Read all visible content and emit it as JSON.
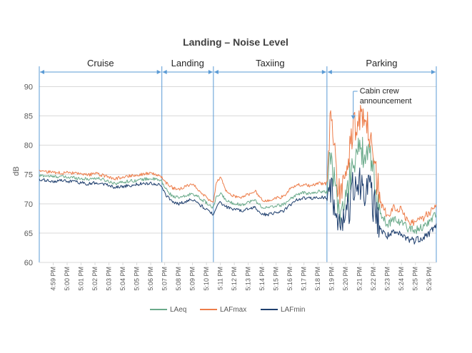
{
  "chart_data": {
    "type": "line",
    "title": "Landing – Noise Level",
    "xlabel": "",
    "ylabel": "dB",
    "ylim": [
      60,
      92
    ],
    "yticks": [
      60,
      65,
      70,
      75,
      80,
      85,
      90
    ],
    "grid": true,
    "legend_position": "bottom",
    "x_range_minutes": [
      -1,
      27.5
    ],
    "x_ticks": [
      "4:59 PM",
      "5:00 PM",
      "5:01 PM",
      "5:02 PM",
      "5:03 PM",
      "5:04 PM",
      "5:05 PM",
      "5:06 PM",
      "5:07 PM",
      "5:08 PM",
      "5:09 PM",
      "5:10 PM",
      "5:11 PM",
      "5:12 PM",
      "5:13 PM",
      "5:14 PM",
      "5:15 PM",
      "5:16 PM",
      "5:17 PM",
      "5:18 PM",
      "5:19 PM",
      "5:20 PM",
      "5:21 PM",
      "5:22 PM",
      "5:23 PM",
      "5:24 PM",
      "5:25 PM",
      "5:26 PM"
    ],
    "phases": [
      {
        "label": "Cruise",
        "start_min": -1,
        "end_min": 7.8
      },
      {
        "label": "Landing",
        "start_min": 7.8,
        "end_min": 11.5
      },
      {
        "label": "Taxiing",
        "start_min": 11.5,
        "end_min": 19.65
      },
      {
        "label": "Parking",
        "start_min": 19.65,
        "end_min": 27.5
      }
    ],
    "annotation": {
      "text_lines": [
        "Cabin crew",
        "announcement"
      ],
      "x_min": 22.0,
      "y": 84.5
    },
    "series": [
      {
        "name": "LAeq",
        "color": "#6aaa8a",
        "t": [
          -1,
          -0.5,
          0,
          0.5,
          1,
          1.5,
          2,
          2.5,
          3,
          3.5,
          4,
          4.5,
          5,
          5.5,
          6,
          6.5,
          7,
          7.5,
          7.8,
          8.0,
          8.5,
          9.0,
          9.5,
          10.0,
          10.5,
          11.0,
          11.3,
          11.5,
          11.7,
          12.0,
          12.5,
          13.0,
          13.5,
          14.0,
          14.5,
          15.0,
          15.5,
          16.0,
          16.5,
          17.0,
          17.5,
          18.0,
          18.5,
          19.0,
          19.5,
          19.65,
          19.9,
          20.2,
          20.5,
          21.0,
          21.5,
          22.0,
          22.5,
          22.9,
          23.2,
          23.6,
          24.0,
          24.5,
          25.0,
          25.5,
          26.0,
          26.5,
          27.0,
          27.5
        ],
        "values": [
          74.8,
          74.8,
          74.6,
          74.7,
          74.5,
          74.5,
          74.3,
          74.2,
          74.4,
          74.2,
          73.8,
          73.5,
          73.7,
          73.9,
          74.0,
          74.2,
          74.3,
          74.1,
          73.8,
          72.8,
          71.4,
          71.0,
          71.3,
          71.8,
          71.0,
          70.2,
          69.5,
          69.4,
          71.0,
          71.8,
          70.4,
          70.1,
          69.8,
          70.3,
          70.6,
          69.4,
          69.3,
          69.7,
          69.8,
          70.8,
          71.6,
          71.9,
          71.7,
          72.1,
          72.1,
          72.0,
          78.5,
          74.5,
          68.5,
          70.0,
          77.5,
          79.0,
          78.5,
          77.0,
          71.5,
          67.8,
          66.5,
          67.5,
          66.8,
          65.8,
          65.5,
          66.0,
          67.0,
          68.3
        ]
      },
      {
        "name": "LAFmax",
        "color": "#ed7d4a",
        "t": [
          -1,
          -0.5,
          0,
          0.5,
          1,
          1.5,
          2,
          2.5,
          3,
          3.5,
          4,
          4.5,
          5,
          5.5,
          6,
          6.5,
          7,
          7.5,
          7.8,
          8.0,
          8.5,
          9.0,
          9.5,
          10.0,
          10.5,
          11.0,
          11.3,
          11.5,
          11.7,
          12.0,
          12.5,
          13.0,
          13.5,
          14.0,
          14.5,
          15.0,
          15.5,
          16.0,
          16.5,
          17.0,
          17.5,
          18.0,
          18.5,
          19.0,
          19.5,
          19.65,
          19.9,
          20.2,
          20.5,
          21.0,
          21.5,
          22.0,
          22.5,
          22.9,
          23.2,
          23.6,
          24.0,
          24.5,
          25.0,
          25.5,
          26.0,
          26.5,
          27.0,
          27.5
        ],
        "values": [
          75.8,
          75.4,
          75.4,
          75.3,
          75.3,
          75.2,
          75.0,
          74.9,
          75.2,
          74.9,
          74.5,
          74.3,
          74.6,
          74.8,
          74.9,
          75.1,
          75.2,
          74.9,
          74.6,
          73.8,
          72.8,
          72.4,
          72.9,
          73.5,
          72.2,
          71.1,
          70.3,
          70.2,
          73.5,
          74.5,
          71.8,
          71.3,
          71.1,
          71.6,
          72.2,
          70.6,
          70.5,
          71.0,
          71.2,
          72.5,
          73.2,
          73.3,
          73.0,
          73.5,
          73.4,
          73.5,
          86.0,
          80.0,
          71.5,
          74.0,
          83.0,
          84.5,
          83.5,
          80.0,
          74.0,
          69.5,
          68.0,
          69.5,
          69.0,
          67.0,
          66.8,
          67.5,
          68.5,
          70.0
        ]
      },
      {
        "name": "LAFmin",
        "color": "#1f3f6e",
        "t": [
          -1,
          -0.5,
          0,
          0.5,
          1,
          1.5,
          2,
          2.5,
          3,
          3.5,
          4,
          4.5,
          5,
          5.5,
          6,
          6.5,
          7,
          7.5,
          7.8,
          8.0,
          8.5,
          9.0,
          9.5,
          10.0,
          10.5,
          11.0,
          11.3,
          11.5,
          11.7,
          12.0,
          12.5,
          13.0,
          13.5,
          14.0,
          14.5,
          15.0,
          15.5,
          16.0,
          16.5,
          17.0,
          17.5,
          18.0,
          18.5,
          19.0,
          19.5,
          19.65,
          19.9,
          20.2,
          20.5,
          21.0,
          21.5,
          22.0,
          22.5,
          22.9,
          23.2,
          23.6,
          24.0,
          24.5,
          25.0,
          25.5,
          26.0,
          26.5,
          27.0,
          27.5
        ],
        "values": [
          74.0,
          74.0,
          73.8,
          74.0,
          73.8,
          73.8,
          73.6,
          73.4,
          73.6,
          73.5,
          73.1,
          72.8,
          73.0,
          73.1,
          73.3,
          73.5,
          73.5,
          73.3,
          73.0,
          71.8,
          70.4,
          70.0,
          70.4,
          70.8,
          69.9,
          69.0,
          68.5,
          68.3,
          69.5,
          70.2,
          69.4,
          69.1,
          68.8,
          69.1,
          69.4,
          68.2,
          68.2,
          68.6,
          68.7,
          69.8,
          70.7,
          71.0,
          70.9,
          71.1,
          71.1,
          71.0,
          73.5,
          70.0,
          66.5,
          67.0,
          72.0,
          73.5,
          73.0,
          71.0,
          68.0,
          65.2,
          64.5,
          65.0,
          64.6,
          64.0,
          63.8,
          64.3,
          65.0,
          66.5
        ]
      }
    ]
  }
}
